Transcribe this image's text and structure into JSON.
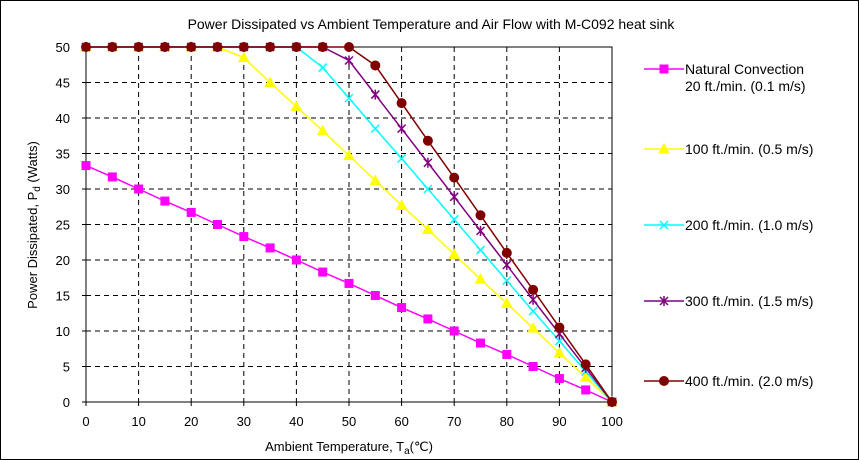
{
  "chart_data": {
    "type": "line",
    "title": "Power Dissipated vs Ambient Temperature and Air Flow with M-C092 heat sink",
    "xlabel": {
      "main": "Ambient Temperature, T",
      "sub": "a",
      "suffix": "(℃)"
    },
    "ylabel": {
      "main": "Power Dissipated, P",
      "sub": "d",
      "suffix": " (Watts)"
    },
    "xlim": [
      0,
      100
    ],
    "ylim": [
      0,
      50
    ],
    "xticks": [
      0,
      10,
      20,
      30,
      40,
      50,
      60,
      70,
      80,
      90,
      100
    ],
    "yticks": [
      0,
      5,
      10,
      15,
      20,
      25,
      30,
      35,
      40,
      45,
      50
    ],
    "grid": true,
    "legend_position": "right",
    "series": [
      {
        "name_lines": [
          "Natural Convection",
          "20 ft./min. (0.1 m/s)"
        ],
        "color": "#FF00FF",
        "marker": "square",
        "x": [
          0,
          5,
          10,
          15,
          20,
          25,
          30,
          35,
          40,
          45,
          50,
          55,
          60,
          65,
          70,
          75,
          80,
          85,
          90,
          95,
          100
        ],
        "y": [
          33.3,
          31.7,
          30.0,
          28.3,
          26.7,
          25.0,
          23.3,
          21.7,
          20.0,
          18.3,
          16.7,
          15.0,
          13.3,
          11.7,
          10.0,
          8.3,
          6.7,
          5.0,
          3.3,
          1.7,
          0
        ]
      },
      {
        "name_lines": [
          "100 ft./min. (0.5 m/s)"
        ],
        "color": "#FFFF00",
        "marker": "triangle",
        "x": [
          0,
          5,
          10,
          15,
          20,
          25,
          30,
          35,
          40,
          45,
          50,
          55,
          60,
          65,
          70,
          75,
          80,
          85,
          90,
          95,
          100
        ],
        "y": [
          50,
          50,
          50,
          50,
          50,
          50,
          48.5,
          45.0,
          41.6,
          38.2,
          34.7,
          31.2,
          27.7,
          24.3,
          20.8,
          17.3,
          13.9,
          10.4,
          6.9,
          3.5,
          0
        ]
      },
      {
        "name_lines": [
          "200 ft./min. (1.0 m/s)"
        ],
        "color": "#00FFFF",
        "marker": "x",
        "x": [
          0,
          5,
          10,
          15,
          20,
          25,
          30,
          35,
          40,
          45,
          50,
          55,
          60,
          65,
          70,
          75,
          80,
          85,
          90,
          95,
          100
        ],
        "y": [
          50,
          50,
          50,
          50,
          50,
          50,
          50,
          50,
          50,
          47.1,
          42.8,
          38.5,
          34.3,
          30.0,
          25.7,
          21.4,
          17.1,
          12.8,
          8.6,
          4.3,
          0
        ]
      },
      {
        "name_lines": [
          "300 ft./min. (1.5 m/s)"
        ],
        "color": "#800080",
        "marker": "asterisk",
        "x": [
          0,
          5,
          10,
          15,
          20,
          25,
          30,
          35,
          40,
          45,
          50,
          55,
          60,
          65,
          70,
          75,
          80,
          85,
          90,
          95,
          100
        ],
        "y": [
          50,
          50,
          50,
          50,
          50,
          50,
          50,
          50,
          50,
          50,
          48.1,
          43.3,
          38.5,
          33.7,
          28.9,
          24.1,
          19.3,
          14.4,
          9.6,
          4.8,
          0
        ]
      },
      {
        "name_lines": [
          "400 ft./min. (2.0 m/s)"
        ],
        "color": "#800000",
        "marker": "circle",
        "x": [
          0,
          5,
          10,
          15,
          20,
          25,
          30,
          35,
          40,
          45,
          50,
          55,
          60,
          65,
          70,
          75,
          80,
          85,
          90,
          95,
          100
        ],
        "y": [
          50,
          50,
          50,
          50,
          50,
          50,
          50,
          50,
          50,
          50,
          50,
          47.4,
          42.1,
          36.8,
          31.6,
          26.3,
          21.0,
          15.8,
          10.5,
          5.3,
          0
        ]
      }
    ]
  }
}
